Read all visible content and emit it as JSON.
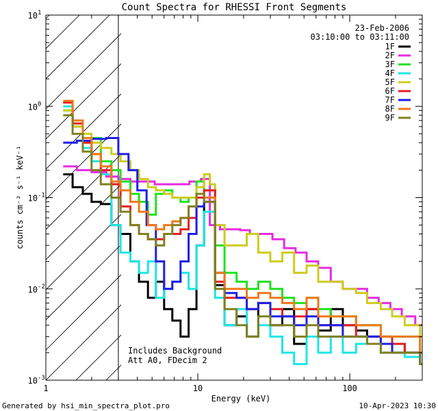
{
  "chart_data": {
    "type": "line",
    "title": "Count Spectra for RHESSI Front Segments",
    "xlabel": "Energy (keV)",
    "ylabel": "counts cm⁻² s⁻¹ keV⁻¹",
    "xscale": "log",
    "yscale": "log",
    "xlim": [
      1,
      300
    ],
    "ylim": [
      0.001,
      10
    ],
    "x_ticks": [
      1,
      10,
      100
    ],
    "x_tick_labels": [
      "1",
      "10",
      "100"
    ],
    "y_ticks": [
      0.001,
      0.01,
      0.1,
      1,
      10
    ],
    "y_tick_labels": [
      [
        "10",
        "-3"
      ],
      [
        "10",
        "-2"
      ],
      [
        "10",
        "-1"
      ],
      [
        "10",
        "0"
      ],
      [
        "10",
        "1"
      ]
    ],
    "date": "23-Feb-2006",
    "time_range": "03:10:00 to 03:11:00",
    "hatched_region_kev": [
      1,
      3
    ],
    "annotation_lines": [
      "Includes Background",
      "Att A0, FDecim 2"
    ],
    "footer_left": "Generated by hsi_min_spectra_plot.pro",
    "footer_right": "10-Apr-2023 10:30",
    "series": [
      {
        "name": "1F",
        "color": "#000000",
        "x": [
          1.3,
          1.5,
          1.75,
          2.0,
          2.3,
          2.7,
          3.1,
          3.6,
          4.1,
          4.7,
          5.3,
          6.0,
          6.8,
          7.7,
          8.7,
          9.8,
          11,
          13,
          15,
          18,
          21,
          25,
          30,
          36,
          43,
          52,
          62,
          75,
          90,
          110,
          130,
          160,
          190,
          230,
          290
        ],
        "y": [
          0.18,
          0.13,
          0.11,
          0.09,
          0.085,
          0.05,
          0.04,
          0.02,
          0.012,
          0.008,
          0.012,
          0.006,
          0.0045,
          0.003,
          0.006,
          0.03,
          0.09,
          0.011,
          0.004,
          0.005,
          0.003,
          0.007,
          0.004,
          0.006,
          0.0025,
          0.006,
          0.0035,
          0.006,
          0.004,
          0.0035,
          0.003,
          0.0025,
          0.0025,
          0.002,
          0.0015
        ]
      },
      {
        "name": "2F",
        "color": "#e62ce0",
        "x": [
          1.3,
          1.6,
          2.0,
          2.5,
          3.0,
          3.6,
          4.3,
          5.2,
          6.2,
          7.4,
          8.8,
          10.5,
          12,
          14,
          16,
          19,
          22,
          26,
          31,
          37,
          44,
          52,
          62,
          75,
          90,
          108,
          130,
          155,
          185,
          220,
          270
        ],
        "y": [
          0.22,
          0.2,
          0.19,
          0.17,
          0.16,
          0.15,
          0.15,
          0.14,
          0.14,
          0.14,
          0.15,
          0.16,
          0.05,
          0.045,
          0.045,
          0.044,
          0.04,
          0.04,
          0.035,
          0.028,
          0.025,
          0.02,
          0.017,
          0.012,
          0.01,
          0.01,
          0.008,
          0.007,
          0.006,
          0.005,
          0.004
        ]
      },
      {
        "name": "3F",
        "color": "#1ee21e",
        "x": [
          1.3,
          1.5,
          1.75,
          2.0,
          2.3,
          2.7,
          3.1,
          3.6,
          4.1,
          4.7,
          5.3,
          6.0,
          6.8,
          7.7,
          8.7,
          9.8,
          11,
          13,
          15,
          18,
          21,
          25,
          30,
          36,
          43,
          52,
          62,
          75,
          90,
          110,
          130,
          160,
          190,
          230,
          290
        ],
        "y": [
          0.9,
          0.6,
          0.4,
          0.45,
          0.25,
          0.2,
          0.15,
          0.11,
          0.09,
          0.065,
          0.11,
          0.12,
          0.1,
          0.09,
          0.1,
          0.15,
          0.12,
          0.03,
          0.015,
          0.012,
          0.01,
          0.012,
          0.01,
          0.008,
          0.007,
          0.008,
          0.006,
          0.005,
          0.005,
          0.004,
          0.004,
          0.003,
          0.003,
          0.003,
          0.002
        ]
      },
      {
        "name": "4F",
        "color": "#1ee6e6",
        "x": [
          1.3,
          1.5,
          1.75,
          2.0,
          2.3,
          2.7,
          3.1,
          3.6,
          4.1,
          4.7,
          5.3,
          6.0,
          6.8,
          7.7,
          8.7,
          9.8,
          11,
          13,
          15,
          18,
          21,
          25,
          30,
          36,
          43,
          52,
          62,
          75,
          90,
          110,
          130,
          160,
          190,
          230,
          290
        ],
        "y": [
          1.0,
          0.6,
          0.35,
          0.25,
          0.18,
          0.05,
          0.025,
          0.02,
          0.015,
          0.02,
          0.008,
          0.01,
          0.012,
          0.015,
          0.01,
          0.03,
          0.07,
          0.008,
          0.004,
          0.006,
          0.003,
          0.004,
          0.003,
          0.002,
          0.0015,
          0.003,
          0.002,
          0.003,
          0.002,
          0.0025,
          0.003,
          0.002,
          0.002,
          0.0018,
          0.0015
        ]
      },
      {
        "name": "5F",
        "color": "#cccc1e",
        "x": [
          1.3,
          1.5,
          1.75,
          2.0,
          2.3,
          2.7,
          3.1,
          3.6,
          4.1,
          4.7,
          5.3,
          6.0,
          6.8,
          7.7,
          8.7,
          9.8,
          11,
          12,
          13,
          15,
          18,
          21,
          25,
          30,
          36,
          43,
          52,
          62,
          75,
          90,
          110,
          130,
          160,
          190,
          230,
          290
        ],
        "y": [
          0.9,
          0.6,
          0.5,
          0.4,
          0.35,
          0.3,
          0.25,
          0.2,
          0.16,
          0.13,
          0.12,
          0.11,
          0.1,
          0.1,
          0.1,
          0.13,
          0.18,
          0.14,
          0.05,
          0.03,
          0.03,
          0.04,
          0.025,
          0.02,
          0.025,
          0.015,
          0.018,
          0.012,
          0.012,
          0.01,
          0.009,
          0.007,
          0.006,
          0.005,
          0.004,
          0.003
        ]
      },
      {
        "name": "6F",
        "color": "#e61e1e",
        "x": [
          1.3,
          1.5,
          1.75,
          2.0,
          2.3,
          2.7,
          3.1,
          3.6,
          4.1,
          4.7,
          5.3,
          6.0,
          6.8,
          7.7,
          8.7,
          9.8,
          11,
          13,
          15,
          18,
          21,
          25,
          30,
          36,
          43,
          52,
          62,
          75,
          90,
          110,
          130,
          160,
          190,
          230,
          290
        ],
        "y": [
          1.1,
          0.65,
          0.4,
          0.3,
          0.2,
          0.14,
          0.08,
          0.05,
          0.04,
          0.035,
          0.035,
          0.04,
          0.04,
          0.045,
          0.06,
          0.1,
          0.12,
          0.012,
          0.008,
          0.008,
          0.006,
          0.007,
          0.006,
          0.005,
          0.005,
          0.006,
          0.004,
          0.004,
          0.004,
          0.003,
          0.003,
          0.003,
          0.0025,
          0.002,
          0.002
        ]
      },
      {
        "name": "7F",
        "color": "#1e1ee6",
        "x": [
          1.3,
          1.6,
          2.0,
          2.5,
          3.0,
          3.5,
          4.0,
          4.6,
          5.3,
          6.0,
          6.8,
          7.7,
          8.7,
          9.8,
          11,
          13,
          15,
          18,
          21,
          25,
          30,
          36,
          43,
          52,
          62,
          75,
          90,
          110,
          130,
          160,
          190,
          230,
          290
        ],
        "y": [
          0.4,
          0.42,
          0.44,
          0.45,
          0.3,
          0.2,
          0.12,
          0.05,
          0.02,
          0.01,
          0.012,
          0.02,
          0.04,
          0.08,
          0.09,
          0.015,
          0.009,
          0.008,
          0.006,
          0.007,
          0.005,
          0.005,
          0.004,
          0.005,
          0.004,
          0.004,
          0.003,
          0.003,
          0.003,
          0.0025,
          0.002,
          0.002,
          0.0015
        ]
      },
      {
        "name": "8F",
        "color": "#f07818",
        "x": [
          1.3,
          1.5,
          1.75,
          2.0,
          2.3,
          2.7,
          3.1,
          3.6,
          4.1,
          4.7,
          5.3,
          6.0,
          6.8,
          7.7,
          8.7,
          9.8,
          11,
          13,
          15,
          18,
          21,
          25,
          30,
          36,
          43,
          52,
          62,
          75,
          90,
          110,
          130,
          160,
          190,
          230,
          290
        ],
        "y": [
          1.15,
          0.7,
          0.45,
          0.3,
          0.22,
          0.15,
          0.12,
          0.09,
          0.07,
          0.05,
          0.045,
          0.05,
          0.055,
          0.06,
          0.08,
          0.11,
          0.1,
          0.015,
          0.01,
          0.01,
          0.008,
          0.009,
          0.008,
          0.007,
          0.006,
          0.008,
          0.005,
          0.005,
          0.005,
          0.004,
          0.004,
          0.003,
          0.003,
          0.003,
          0.002
        ]
      },
      {
        "name": "9F",
        "color": "#808020",
        "x": [
          1.3,
          1.5,
          1.75,
          2.0,
          2.3,
          2.7,
          3.1,
          3.6,
          4.1,
          4.7,
          5.3,
          6.0,
          6.8,
          7.7,
          8.7,
          9.8,
          11,
          13,
          15,
          18,
          21,
          25,
          30,
          36,
          43,
          52,
          62,
          75,
          90,
          110,
          130,
          160,
          190,
          230,
          290
        ],
        "y": [
          0.8,
          0.5,
          0.32,
          0.2,
          0.14,
          0.1,
          0.07,
          0.05,
          0.04,
          0.035,
          0.03,
          0.04,
          0.05,
          0.06,
          0.08,
          0.11,
          0.09,
          0.01,
          0.006,
          0.004,
          0.003,
          0.005,
          0.004,
          0.004,
          0.003,
          0.004,
          0.003,
          0.003,
          0.003,
          0.003,
          0.0025,
          0.002,
          0.002,
          0.002,
          0.0015
        ]
      }
    ]
  }
}
